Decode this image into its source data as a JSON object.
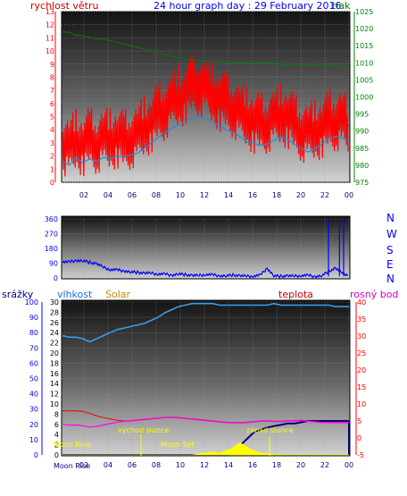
{
  "header": {
    "wind_speed_label": "rychlost větru",
    "title": "24 hour graph day : 29 February 2016",
    "pressure_label": "tlak"
  },
  "direction_axis": [
    "N",
    "W",
    "S",
    "E",
    "N"
  ],
  "bottom_header": {
    "rain_label": "srážky",
    "humidity_label": "vlhkost",
    "solar_label": "Solar",
    "temp_label": "teplota",
    "dew_label": "rosný bod"
  },
  "annotations": {
    "sunrise": "východ slunce",
    "sunset": "západ slunce",
    "moonrise": "Moon Rise",
    "moonset": "Moon Set",
    "moonrise_bottom": "Moon Rise"
  },
  "colors": {
    "wind": "#ff0000",
    "wind_avg": "#1e8ad8",
    "pressure": "#008000",
    "direction": "#0000ff",
    "humidity": "#3b9ae8",
    "solar": "#ffff00",
    "temperature": "#dd1a1a",
    "dew_point": "#ff00ff",
    "rain": "#000080",
    "wind_axis": "#ff0000",
    "pressure_axis": "#008000",
    "humidity_axis": "#0000ff",
    "temp_axis": "#ff0000",
    "title": "#0000ff"
  },
  "chart_data": [
    {
      "type": "line",
      "name": "wind",
      "x_ticks": [
        "02",
        "04",
        "06",
        "08",
        "10",
        "12",
        "14",
        "16",
        "18",
        "20",
        "22",
        "00"
      ],
      "ylim_left": [
        0,
        13
      ],
      "y_ticks_left": [
        "0",
        "1",
        "2",
        "3",
        "4",
        "5",
        "6",
        "7",
        "8",
        "9",
        "10",
        "11",
        "12",
        "13"
      ],
      "ylim_right": [
        975,
        1025
      ],
      "y_ticks_right": [
        "975",
        "980",
        "985",
        "990",
        "995",
        "1000",
        "1005",
        "1010",
        "1015",
        "1020",
        "1025"
      ],
      "grid": true,
      "series": [
        {
          "name": "rychlost větru",
          "values": [
            3.0,
            2.6,
            3.2,
            2.8,
            3.4,
            3.0,
            3.3,
            3.2,
            3.5,
            3.1,
            3.4,
            3.6,
            4.2,
            4.6,
            5.2,
            5.6,
            6.1,
            6.5,
            6.8,
            7.3,
            7.5,
            7.2,
            6.7,
            6.3,
            6.0,
            5.8,
            5.3,
            4.9,
            4.6,
            4.4,
            4.6,
            4.9,
            5.1,
            5.0,
            4.4,
            4.0,
            3.7,
            3.9,
            4.2,
            4.6,
            4.8,
            4.7,
            4.3
          ]
        },
        {
          "name": "wind average",
          "values": [
            1.6,
            1.3,
            1.9,
            1.5,
            1.8,
            1.6,
            1.9,
            1.8,
            2.0,
            1.9,
            2.1,
            2.2,
            2.6,
            3.0,
            3.4,
            3.8,
            4.1,
            4.4,
            4.6,
            4.9,
            5.0,
            4.9,
            4.6,
            4.3,
            4.0,
            3.8,
            3.5,
            3.1,
            3.0,
            2.8,
            2.9,
            3.2,
            3.4,
            3.3,
            2.9,
            2.6,
            2.3,
            2.6,
            2.9,
            3.3,
            3.5,
            3.4,
            3.1
          ]
        },
        {
          "name": "tlak",
          "values": [
            1019.0,
            1019.0,
            1018.0,
            1018.0,
            1017.5,
            1017.0,
            1017.0,
            1016.5,
            1016.0,
            1015.5,
            1015.0,
            1014.5,
            1014.0,
            1013.5,
            1013.0,
            1012.5,
            1012.0,
            1011.5,
            1011.0,
            1011.0,
            1010.5,
            1010.5,
            1010.5,
            1010.5,
            1010.0,
            1010.0,
            1010.0,
            1010.0,
            1010.0,
            1010.0,
            1010.0,
            1010.0,
            1009.5,
            1009.5,
            1009.5,
            1009.5,
            1009.5,
            1009.5,
            1009.5,
            1009.5,
            1009.0,
            1009.0,
            1009.0
          ]
        }
      ]
    },
    {
      "type": "line",
      "name": "wind direction",
      "x_ticks": [
        "02",
        "04",
        "06",
        "08",
        "10",
        "12",
        "14",
        "16",
        "18",
        "20",
        "22",
        "00"
      ],
      "ylim": [
        0,
        360
      ],
      "y_ticks": [
        "0",
        "90",
        "180",
        "270",
        "360"
      ],
      "grid": true,
      "series": [
        {
          "name": "direction",
          "values": [
            100,
            96,
            108,
            104,
            95,
            88,
            64,
            52,
            48,
            44,
            36,
            34,
            30,
            28,
            25,
            22,
            18,
            24,
            20,
            16,
            14,
            22,
            18,
            14,
            12,
            18,
            14,
            10,
            12,
            16,
            60,
            12,
            10,
            14,
            10,
            16,
            14,
            10,
            12,
            40,
            60,
            30,
            16
          ]
        }
      ]
    },
    {
      "type": "line",
      "name": "humidity temperature solar rain",
      "x_ticks": [
        "02",
        "04",
        "06",
        "08",
        "10",
        "12",
        "14",
        "16",
        "18",
        "20",
        "22",
        "00"
      ],
      "ylim_humidity": [
        0,
        100
      ],
      "y_ticks_humidity": [
        "0",
        "10",
        "20",
        "30",
        "40",
        "50",
        "60",
        "70",
        "80",
        "90",
        "100"
      ],
      "ylim_solar": [
        0,
        30
      ],
      "y_ticks_solar": [
        "0",
        "2",
        "4",
        "6",
        "8",
        "10",
        "12",
        "14",
        "16",
        "18",
        "20",
        "22",
        "24",
        "26",
        "28",
        "30"
      ],
      "ylim_temp": [
        -5,
        40
      ],
      "y_ticks_temp": [
        "-5",
        "0",
        "5",
        "10",
        "15",
        "20",
        "25",
        "30",
        "35",
        "40"
      ],
      "grid": true,
      "series": [
        {
          "name": "vlhkost",
          "values": [
            78,
            77,
            77,
            76,
            74,
            76,
            78,
            80,
            82,
            83,
            84,
            85,
            86,
            88,
            90,
            93,
            95,
            97,
            98,
            99,
            99,
            99,
            99,
            98,
            98,
            98,
            98,
            98,
            98,
            98,
            98,
            99,
            98,
            98,
            98,
            98,
            98,
            98,
            98,
            98,
            97,
            97,
            97
          ]
        },
        {
          "name": "teplota",
          "values": [
            8.0,
            8.0,
            8.0,
            7.8,
            7.2,
            6.5,
            6.0,
            5.6,
            5.2,
            5.0,
            5.0,
            5.2,
            5.4,
            5.6,
            5.8,
            6.0,
            6.1,
            6.0,
            5.8,
            5.6,
            5.4,
            5.2,
            5.0,
            4.8,
            4.6,
            4.5,
            4.5,
            4.6,
            4.8,
            5.0,
            5.0,
            4.9,
            4.9,
            5.0,
            5.1,
            5.2,
            5.0,
            4.8,
            4.6,
            4.6,
            4.6,
            4.6,
            4.6
          ]
        },
        {
          "name": "rosný bod",
          "values": [
            4.0,
            3.8,
            3.8,
            3.6,
            3.2,
            3.4,
            3.8,
            4.2,
            4.6,
            4.9,
            5.1,
            5.3,
            5.5,
            5.7,
            5.9,
            6.0,
            6.0,
            5.9,
            5.7,
            5.5,
            5.3,
            5.1,
            4.9,
            4.7,
            4.5,
            4.4,
            4.4,
            4.5,
            4.7,
            4.9,
            4.9,
            4.8,
            4.8,
            4.9,
            5.0,
            5.1,
            4.9,
            4.7,
            4.5,
            4.5,
            4.5,
            4.5,
            4.5
          ]
        },
        {
          "name": "Solar",
          "values": [
            0,
            0,
            0,
            0,
            0,
            0,
            0,
            0,
            0,
            0,
            0,
            0,
            0,
            0,
            0,
            0,
            0,
            0,
            0,
            0,
            0.2,
            0.4,
            0.6,
            0.3,
            0.8,
            1.4,
            2.4,
            1.6,
            0.8,
            0.4,
            0.2,
            0.1,
            0,
            0,
            0,
            0,
            0,
            0,
            0,
            0,
            0,
            0,
            0
          ]
        },
        {
          "name": "srážky",
          "values": [
            0,
            0,
            0,
            0,
            0,
            0,
            0,
            0,
            0,
            0,
            0,
            0,
            0,
            0,
            0,
            0,
            0,
            0,
            0,
            0,
            0,
            0,
            0,
            0,
            0,
            0.5,
            1.4,
            2.4,
            3.4,
            3.8,
            4.2,
            4.4,
            4.6,
            4.8,
            4.8,
            5.0,
            5.2,
            5.2,
            5.2,
            5.2,
            5.2,
            5.2,
            5.2
          ]
        }
      ]
    }
  ]
}
